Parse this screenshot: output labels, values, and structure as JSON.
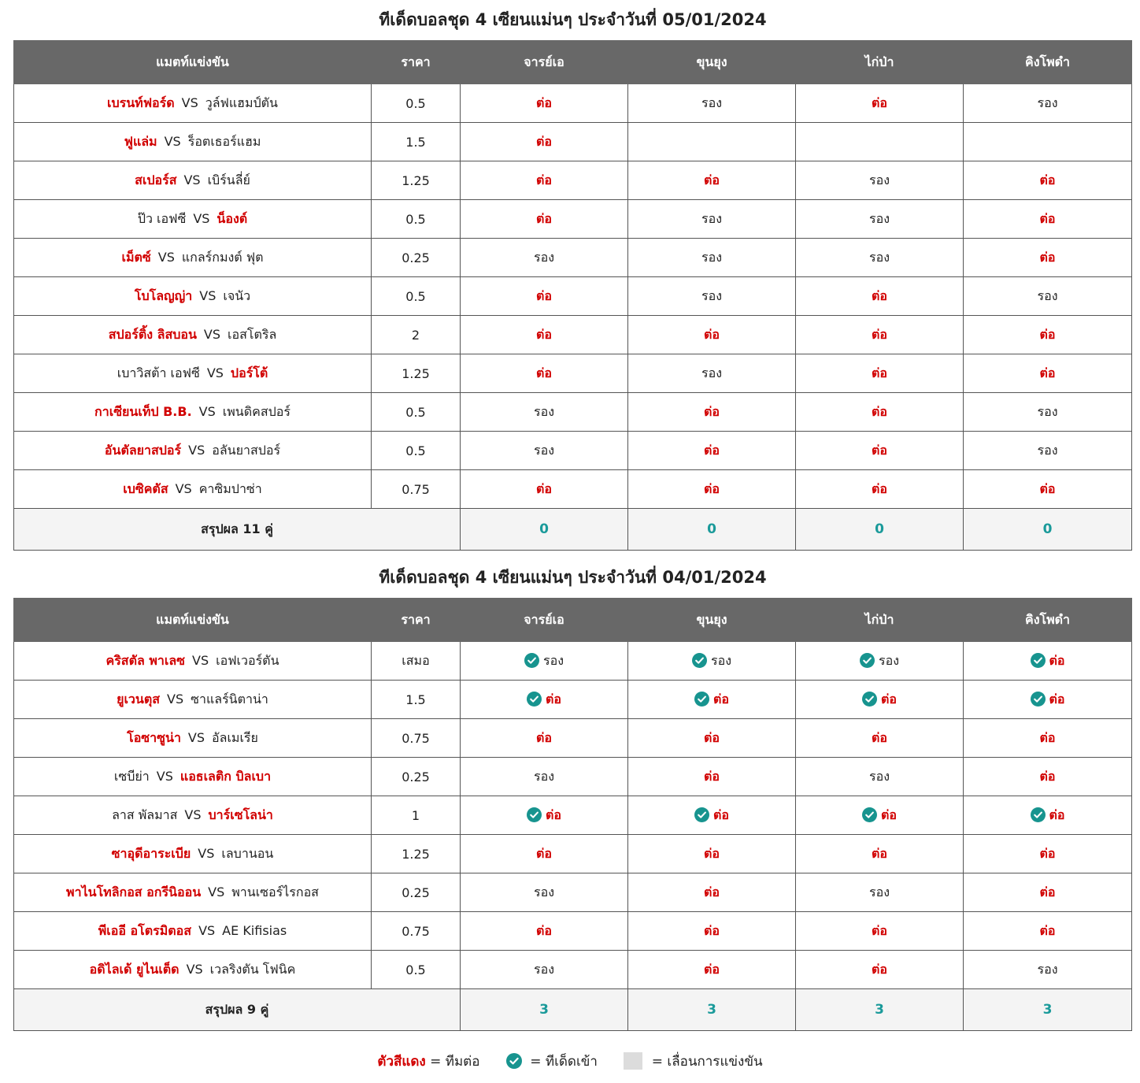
{
  "colors": {
    "header_bg": "#686868",
    "red": "#d10000",
    "teal": "#17948f",
    "summary_bg": "#f4f4f4"
  },
  "headers": [
    "แมตท์แข่งขัน",
    "ราคา",
    "จารย์เอ",
    "ขุนยุง",
    "ไก่ป่า",
    "คิงโพดำ"
  ],
  "vs": "VS",
  "sections": [
    {
      "title": "ทีเด็ดบอลชุด 4 เซียนแม่นๆ ประจำวันที่ 05/01/2024",
      "rows": [
        {
          "home": "เบรนท์ฟอร์ด",
          "away": "วูล์ฟแฮมป์ตัน",
          "fav": "home",
          "price": "0.5",
          "picks": [
            "ต่อ",
            "รอง",
            "ต่อ",
            "รอง"
          ],
          "hits": [
            false,
            false,
            false,
            false
          ]
        },
        {
          "home": "ฟูแล่ม",
          "away": "ร็อตเธอร์แฮม",
          "fav": "home",
          "price": "1.5",
          "picks": [
            "ต่อ",
            "",
            "",
            ""
          ],
          "hits": [
            false,
            false,
            false,
            false
          ]
        },
        {
          "home": "สเปอร์ส",
          "away": "เบิร์นลี่ย์",
          "fav": "home",
          "price": "1.25",
          "picks": [
            "ต่อ",
            "ต่อ",
            "รอง",
            "ต่อ"
          ],
          "hits": [
            false,
            false,
            false,
            false
          ]
        },
        {
          "home": "ป๊ว เอฟซี",
          "away": "น็องต์",
          "fav": "away",
          "price": "0.5",
          "picks": [
            "ต่อ",
            "รอง",
            "รอง",
            "ต่อ"
          ],
          "hits": [
            false,
            false,
            false,
            false
          ]
        },
        {
          "home": "เม็ตซ์",
          "away": "แกลร์กมงต์ ฟุต",
          "fav": "home",
          "price": "0.25",
          "picks": [
            "รอง",
            "รอง",
            "รอง",
            "ต่อ"
          ],
          "hits": [
            false,
            false,
            false,
            false
          ]
        },
        {
          "home": "โบโลญญ่า",
          "away": "เจนัว",
          "fav": "home",
          "price": "0.5",
          "picks": [
            "ต่อ",
            "รอง",
            "ต่อ",
            "รอง"
          ],
          "hits": [
            false,
            false,
            false,
            false
          ]
        },
        {
          "home": "สปอร์ติ้ง ลิสบอน",
          "away": "เอสโตริล",
          "fav": "home",
          "price": "2",
          "picks": [
            "ต่อ",
            "ต่อ",
            "ต่อ",
            "ต่อ"
          ],
          "hits": [
            false,
            false,
            false,
            false
          ]
        },
        {
          "home": "เบาวิสต้า เอฟซี",
          "away": "ปอร์โต้",
          "fav": "away",
          "price": "1.25",
          "picks": [
            "ต่อ",
            "รอง",
            "ต่อ",
            "ต่อ"
          ],
          "hits": [
            false,
            false,
            false,
            false
          ]
        },
        {
          "home": "กาเซียนเท็ป B.B.",
          "away": "เพนดิคสปอร์",
          "fav": "home",
          "price": "0.5",
          "picks": [
            "รอง",
            "ต่อ",
            "ต่อ",
            "รอง"
          ],
          "hits": [
            false,
            false,
            false,
            false
          ]
        },
        {
          "home": "อันตัลยาสปอร์",
          "away": "อลันยาสปอร์",
          "fav": "home",
          "price": "0.5",
          "picks": [
            "รอง",
            "ต่อ",
            "ต่อ",
            "รอง"
          ],
          "hits": [
            false,
            false,
            false,
            false
          ]
        },
        {
          "home": "เบซิคตัส",
          "away": "คาซิมปาซ่า",
          "fav": "home",
          "price": "0.75",
          "picks": [
            "ต่อ",
            "ต่อ",
            "ต่อ",
            "ต่อ"
          ],
          "hits": [
            false,
            false,
            false,
            false
          ]
        }
      ],
      "summary": {
        "label": "สรุปผล 11 คู่",
        "scores": [
          "0",
          "0",
          "0",
          "0"
        ]
      }
    },
    {
      "title": "ทีเด็ดบอลชุด 4 เซียนแม่นๆ ประจำวันที่ 04/01/2024",
      "rows": [
        {
          "home": "คริสตัล พาเลซ",
          "away": "เอฟเวอร์ตัน",
          "fav": "home",
          "price": "เสมอ",
          "picks": [
            "รอง",
            "รอง",
            "รอง",
            "ต่อ"
          ],
          "hits": [
            true,
            true,
            true,
            true
          ]
        },
        {
          "home": "ยูเวนตุส",
          "away": "ซาแลร์นิตาน่า",
          "fav": "home",
          "price": "1.5",
          "picks": [
            "ต่อ",
            "ต่อ",
            "ต่อ",
            "ต่อ"
          ],
          "hits": [
            true,
            true,
            true,
            true
          ]
        },
        {
          "home": "โอซาซูน่า",
          "away": "อัลเมเรีย",
          "fav": "home",
          "price": "0.75",
          "picks": [
            "ต่อ",
            "ต่อ",
            "ต่อ",
            "ต่อ"
          ],
          "hits": [
            false,
            false,
            false,
            false
          ]
        },
        {
          "home": "เซบีย่า",
          "away": "แอธเลติก บิลเบา",
          "fav": "away",
          "price": "0.25",
          "picks": [
            "รอง",
            "ต่อ",
            "รอง",
            "ต่อ"
          ],
          "hits": [
            false,
            false,
            false,
            false
          ]
        },
        {
          "home": "ลาส พัลมาส",
          "away": "บาร์เซโลน่า",
          "fav": "away",
          "price": "1",
          "picks": [
            "ต่อ",
            "ต่อ",
            "ต่อ",
            "ต่อ"
          ],
          "hits": [
            true,
            true,
            true,
            true
          ]
        },
        {
          "home": "ซาอุดีอาระเบีย",
          "away": "เลบานอน",
          "fav": "home",
          "price": "1.25",
          "picks": [
            "ต่อ",
            "ต่อ",
            "ต่อ",
            "ต่อ"
          ],
          "hits": [
            false,
            false,
            false,
            false
          ]
        },
        {
          "home": "พาไนโทลิกอส อกรีนิออน",
          "away": "พานเซอร์ไรกอส",
          "fav": "home",
          "price": "0.25",
          "picks": [
            "รอง",
            "ต่อ",
            "รอง",
            "ต่อ"
          ],
          "hits": [
            false,
            false,
            false,
            false
          ]
        },
        {
          "home": "พีเออี อโตรมิตอส",
          "away": "AE Kifisias",
          "fav": "home",
          "price": "0.75",
          "picks": [
            "ต่อ",
            "ต่อ",
            "ต่อ",
            "ต่อ"
          ],
          "hits": [
            false,
            false,
            false,
            false
          ]
        },
        {
          "home": "อดิไลเด้ ยูไนเต็ด",
          "away": "เวลริงตัน โฟนิค",
          "fav": "home",
          "price": "0.5",
          "picks": [
            "รอง",
            "ต่อ",
            "ต่อ",
            "รอง"
          ],
          "hits": [
            false,
            false,
            false,
            false
          ]
        }
      ],
      "summary": {
        "label": "สรุปผล 9 คู่",
        "scores": [
          "3",
          "3",
          "3",
          "3"
        ]
      }
    }
  ],
  "legend": {
    "red_text": "ตัวสีแดง",
    "red_desc": "= ทีมต่อ",
    "check_desc": "= ทีเด็ดเข้า",
    "gray_desc": "= เลื่อนการแข่งขัน"
  }
}
